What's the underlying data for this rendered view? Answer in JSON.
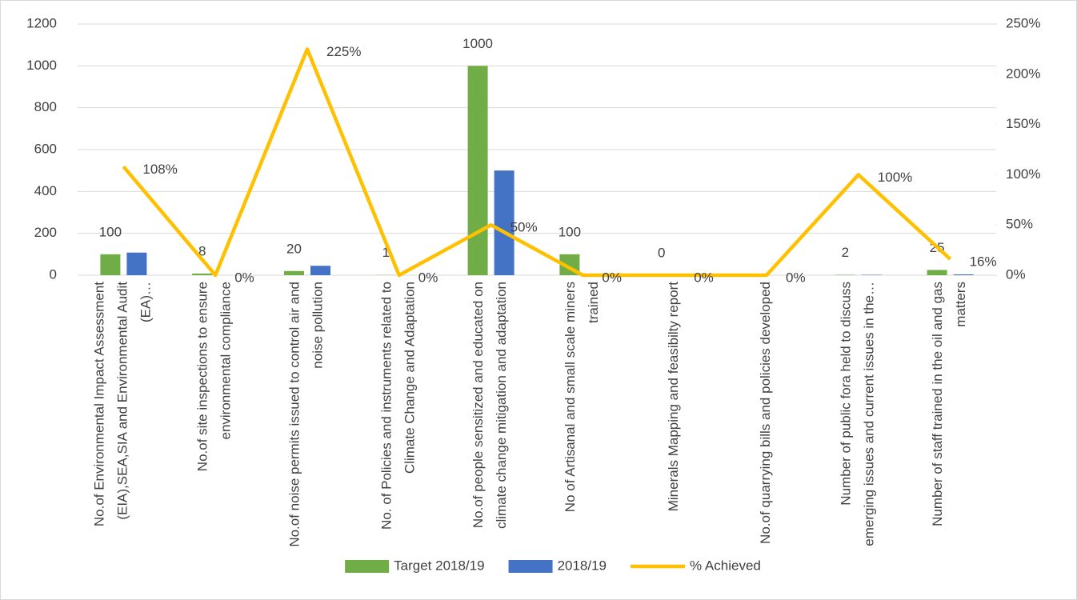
{
  "chart_data": {
    "type": "bar-line",
    "categories": [
      "No.of Environmental Impact Assessment (EIA),SEA,SIA and Environmental Audit (EA)…",
      "No.of site inspections to ensure environmental compliance",
      "No.of noise permits issued to control air and noise pollution",
      "No. of Policies and instruments related to Climate Change and Adaptation",
      "No.of people sensitized and educated on climate change mitigation and adaptation",
      "No of Artisanal and small scale miners trained",
      "Minerals Mapping and feasibilty report",
      "No.of  quarrying bills and policies developed",
      "Number of public fora held to discuss emerging issues and current issues in the…",
      "Number of staff trained in the oil and gas matters"
    ],
    "series": [
      {
        "name": "Target 2018/19",
        "type": "bar",
        "color": "#70ad47",
        "values": [
          100,
          8,
          20,
          1,
          1000,
          100,
          0,
          null,
          2,
          25
        ],
        "data_labels": true
      },
      {
        "name": "2018/19",
        "type": "bar",
        "color": "#4472c4",
        "values": [
          108,
          0,
          45,
          0,
          500,
          0,
          0,
          0,
          2,
          4
        ]
      },
      {
        "name": "% Achieved",
        "type": "line",
        "axis": "y2",
        "color": "#ffc000",
        "values": [
          108,
          0,
          225,
          0,
          50,
          0,
          0,
          0,
          100,
          16
        ],
        "value_labels": [
          "108%",
          "0%",
          "225%",
          "0%",
          "50%",
          "0%",
          "0%",
          "0%",
          "100%",
          "16%"
        ]
      }
    ],
    "ylim": [
      0,
      1200
    ],
    "yticks": [
      0,
      200,
      400,
      600,
      800,
      1000,
      1200
    ],
    "y2lim": [
      0,
      250
    ],
    "y2ticks": [
      {
        "value": 0,
        "label": "0%"
      },
      {
        "value": 50,
        "label": "50%"
      },
      {
        "value": 100,
        "label": "100%"
      },
      {
        "value": 150,
        "label": "150%"
      },
      {
        "value": 200,
        "label": "200%"
      },
      {
        "value": 250,
        "label": "250%"
      }
    ],
    "grid": true,
    "legend": "bottom"
  }
}
